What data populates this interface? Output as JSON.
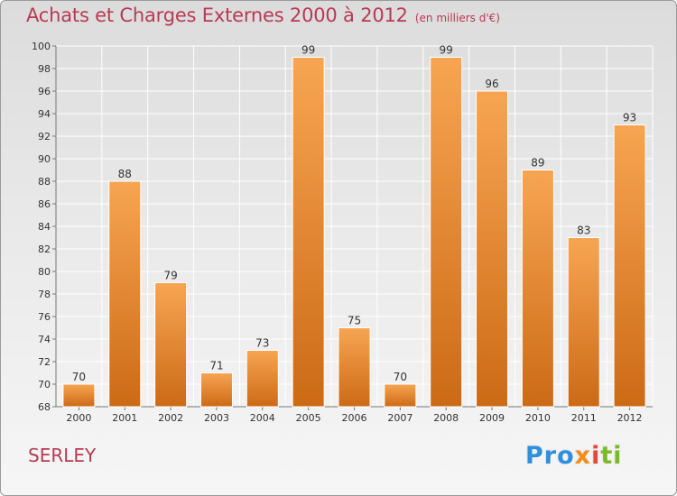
{
  "header": {
    "title": "Achats et Charges Externes 2000 à 2012",
    "subtitle": "(en milliers d'€)"
  },
  "footer": {
    "commune": "SERLEY",
    "brand_parts": [
      "Pro",
      "x",
      "i",
      "ti"
    ]
  },
  "colors": {
    "title": "#b83a52",
    "bar_light": "#f7a552",
    "bar_dark": "#cc6a16",
    "bar_edge": "#ffffff"
  },
  "chart_data": {
    "type": "bar",
    "title": "Achats et Charges Externes 2000 à 2012",
    "subtitle": "(en milliers d'€)",
    "xlabel": "",
    "ylabel": "",
    "categories": [
      "2000",
      "2001",
      "2002",
      "2003",
      "2004",
      "2005",
      "2006",
      "2007",
      "2008",
      "2009",
      "2010",
      "2011",
      "2012"
    ],
    "values": [
      70,
      88,
      79,
      71,
      73,
      99,
      75,
      70,
      99,
      96,
      89,
      83,
      93
    ],
    "ylim": [
      68,
      100
    ],
    "yticks": [
      68,
      70,
      72,
      74,
      76,
      78,
      80,
      82,
      84,
      86,
      88,
      90,
      92,
      94,
      96,
      98,
      100
    ],
    "grid": true,
    "data_labels": true
  }
}
